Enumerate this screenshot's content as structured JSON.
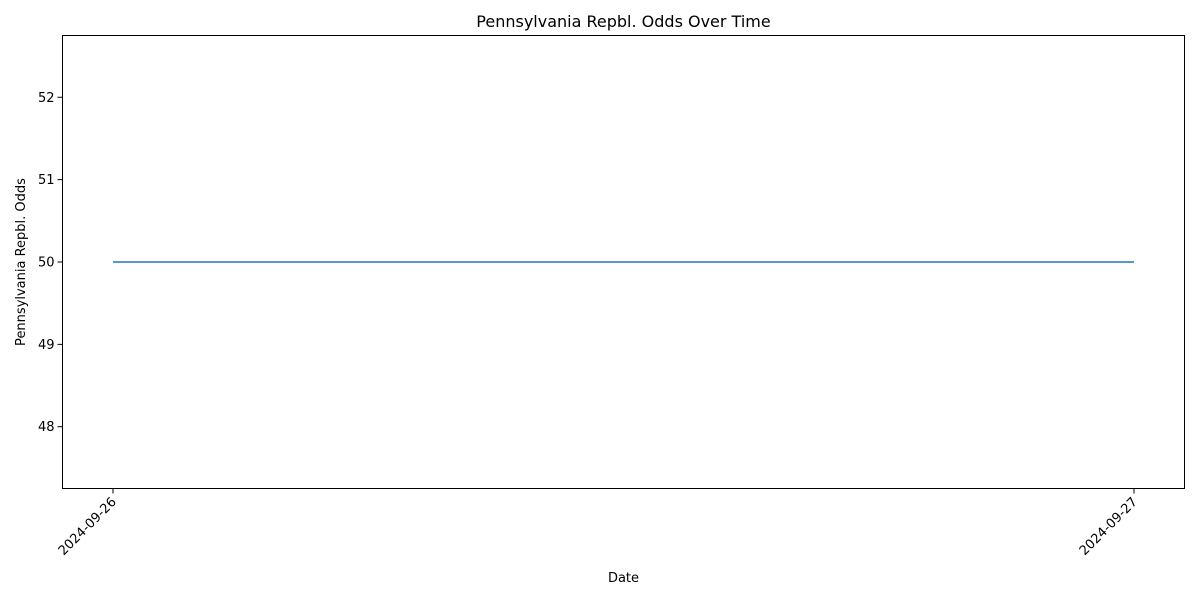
{
  "chart_data": {
    "type": "line",
    "title": "Pennsylvania Repbl. Odds Over Time",
    "xlabel": "Date",
    "ylabel": "Pennsylvania Repbl. Odds",
    "x": [
      "2024-09-26",
      "2024-09-27"
    ],
    "series": [
      {
        "values": [
          50,
          50
        ]
      }
    ],
    "x_ticks": [
      "2024-09-26",
      "2024-09-27"
    ],
    "y_ticks": [
      48,
      49,
      50,
      51,
      52
    ],
    "ylim": [
      47.25,
      52.75
    ],
    "grid": false,
    "legend": "none",
    "line_color": "#1f77b4"
  }
}
